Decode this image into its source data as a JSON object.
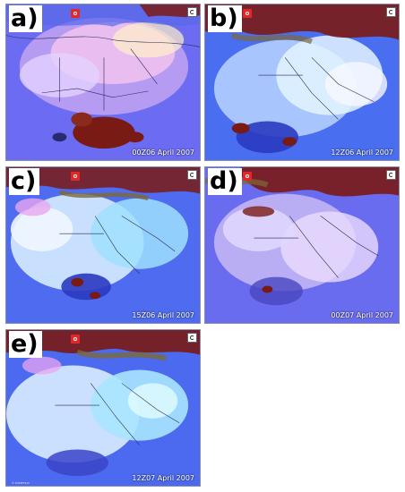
{
  "panels": [
    {
      "label": "a)",
      "caption": "00Z06 April 2007"
    },
    {
      "label": "b)",
      "caption": "12Z06 April 2007"
    },
    {
      "label": "c)",
      "caption": "15Z06 April 2007"
    },
    {
      "label": "d)",
      "caption": "00Z07 April 2007"
    },
    {
      "label": "e)",
      "caption": "12Z07 April 2007"
    }
  ],
  "credit": "© EUMETSAT",
  "colors": {
    "background_blue": "#6a6cf5",
    "dust_pink": "#f3b8f0",
    "dust_white": "#e8f4ff",
    "cloud_red": "#7a1a14",
    "cloud_olive": "#7c6a3a",
    "cyan": "#9fe8ff"
  }
}
